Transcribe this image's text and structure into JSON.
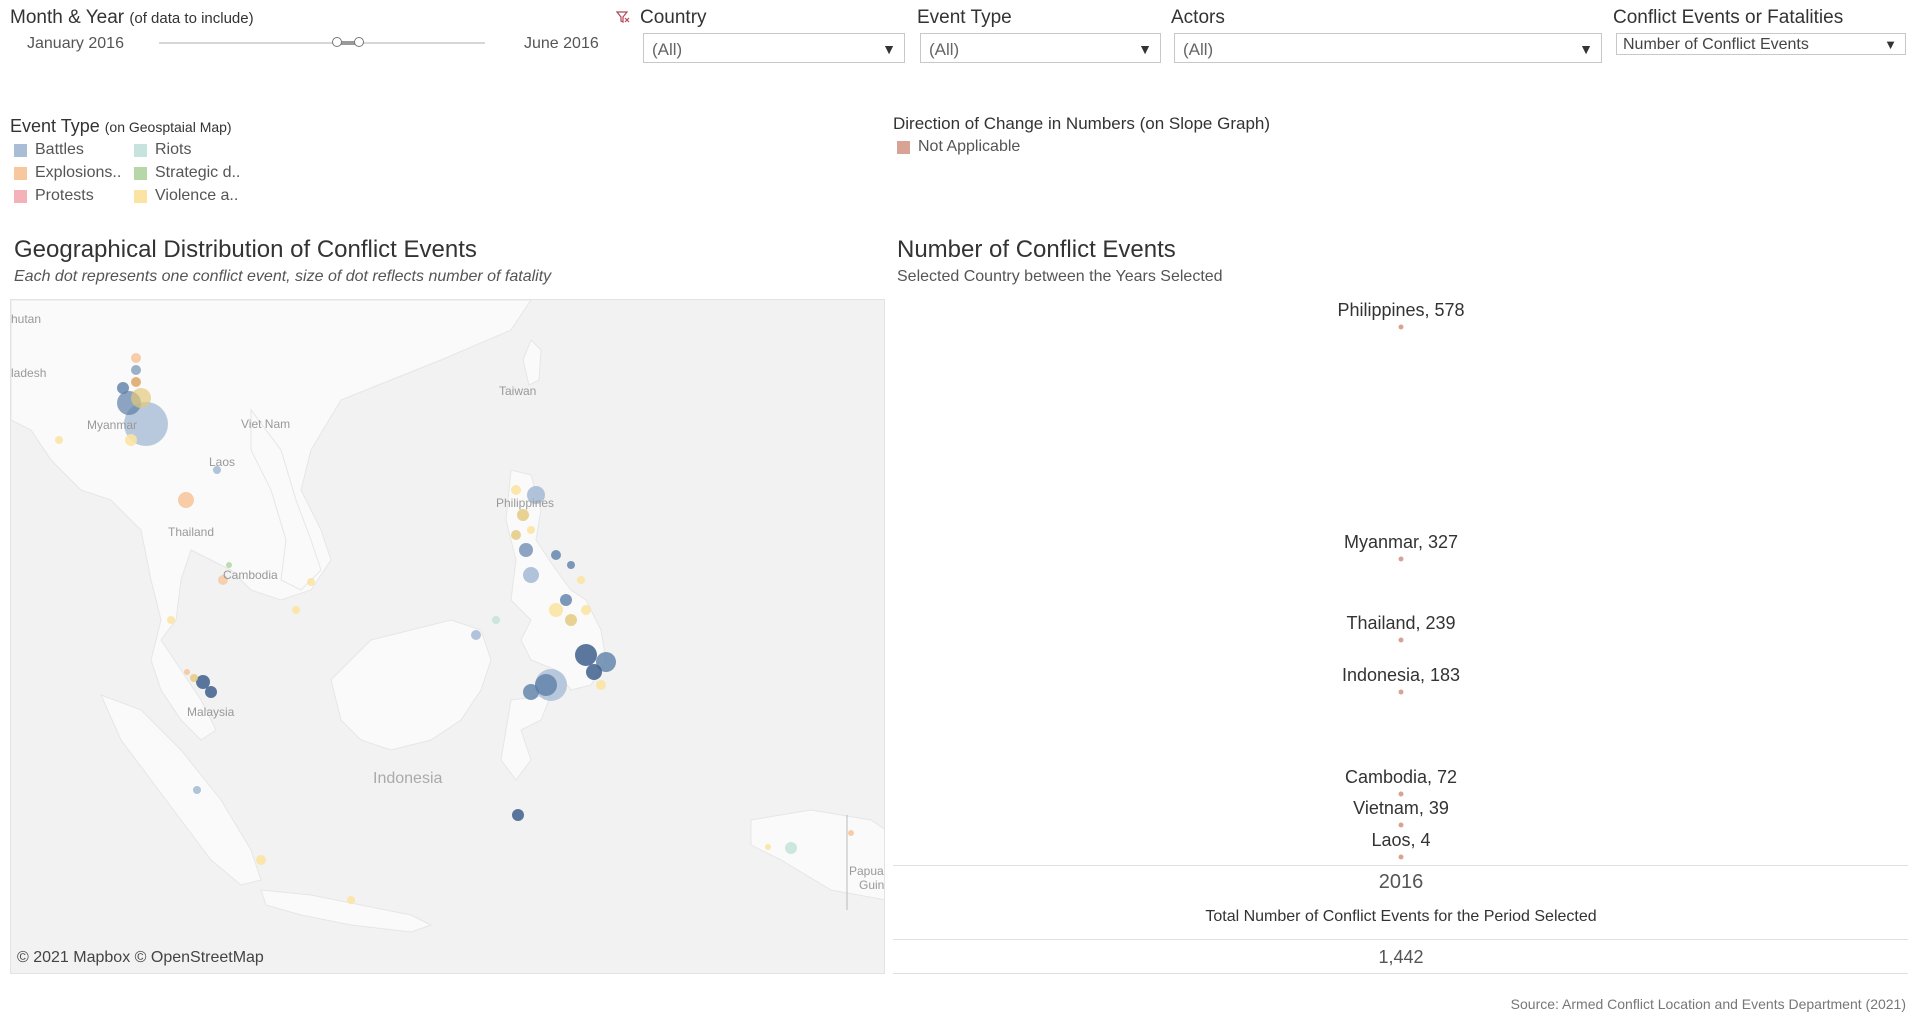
{
  "filters": {
    "month_year": {
      "label": "Month & Year",
      "label_small": "(of data to include)",
      "start": "January 2016",
      "end": "June 2016"
    },
    "country": {
      "label": "Country",
      "value": "(All)"
    },
    "event_type": {
      "label": "Event Type",
      "value": "(All)"
    },
    "actors": {
      "label": "Actors",
      "value": "(All)"
    },
    "measure": {
      "label": "Conflict Events or Fatalities",
      "value": "Number of Conflict Events"
    }
  },
  "legend_event_type": {
    "title": "Event Type",
    "title_small": "(on Geosptaial Map)",
    "items": [
      {
        "label": "Battles",
        "color": "#a9bdd6"
      },
      {
        "label": "Riots",
        "color": "#c7e3dd"
      },
      {
        "label": "Explosions..",
        "color": "#f7c79d"
      },
      {
        "label": "Strategic d..",
        "color": "#b7d7a8"
      },
      {
        "label": "Protests",
        "color": "#f4b1b8"
      },
      {
        "label": "Violence a..",
        "color": "#fbe3a3"
      }
    ]
  },
  "legend_direction": {
    "title": "Direction of Change in Numbers (on Slope Graph)",
    "items": [
      {
        "label": "Not Applicable",
        "color": "#d7a394"
      }
    ]
  },
  "map": {
    "title": "Geographical Distribution of Conflict Events",
    "subtitle": "Each dot represents one conflict event, size of dot reflects number of fatality",
    "credit": "© 2021 Mapbox © OpenStreetMap",
    "labels": {
      "bhutan": "hutan",
      "bangladesh": "ladesh",
      "myanmar": "Myanmar",
      "vietnam": "Viet Nam",
      "laos": "Laos",
      "thailand": "Thailand",
      "cambodia": "Cambodia",
      "malaysia": "Malaysia",
      "philippines": "Philippines",
      "taiwan": "Taiwan",
      "indonesia": "Indonesia",
      "papua": "Papua",
      "guinea": "Guin"
    }
  },
  "slope": {
    "title": "Number of Conflict Events",
    "subtitle": "Selected Country between the Years Selected",
    "year": "2016",
    "total_label": "Total Number of Conflict Events for the Period Selected",
    "total_value": "1,442"
  },
  "chart_data": {
    "type": "scatter",
    "title": "Number of Conflict Events",
    "x": [
      "2016"
    ],
    "series": [
      {
        "name": "Philippines",
        "values": [
          578
        ],
        "label": "Philippines, 578"
      },
      {
        "name": "Myanmar",
        "values": [
          327
        ],
        "label": "Myanmar, 327"
      },
      {
        "name": "Thailand",
        "values": [
          239
        ],
        "label": "Thailand, 239"
      },
      {
        "name": "Indonesia",
        "values": [
          183
        ],
        "label": "Indonesia, 183"
      },
      {
        "name": "Cambodia",
        "values": [
          72
        ],
        "label": "Cambodia, 72"
      },
      {
        "name": "Vietnam",
        "values": [
          39
        ],
        "label": "Vietnam, 39"
      },
      {
        "name": "Laos",
        "values": [
          4
        ],
        "label": "Laos, 4"
      }
    ],
    "ylim": [
      0,
      578
    ]
  },
  "source": "Source: Armed Conflict Location and Events Department (2021)"
}
